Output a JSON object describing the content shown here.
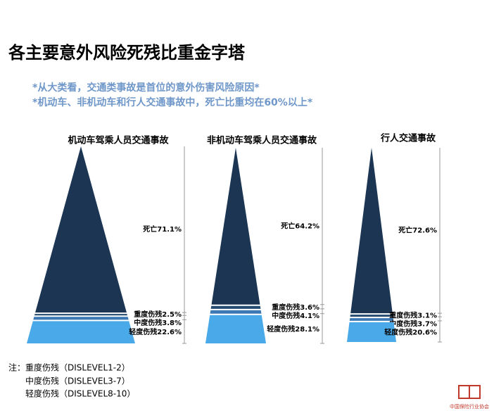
{
  "title": "各主要意外风险死残比重金字塔",
  "subtitles": [
    "*从大类看，交通类事故是首位的意外伤害风险原因*",
    "*机动车、非机动车和行人交通事故中，死亡比重均在60%以上*"
  ],
  "chart_data": [
    {
      "type": "pyramid",
      "title": "机动车驾乘人员交通事故",
      "categories": [
        "死亡",
        "重度伤残",
        "中度伤残",
        "轻度伤残"
      ],
      "values": [
        71.1,
        2.5,
        3.8,
        22.6
      ],
      "value_labels": [
        "死亡71.1%",
        "重度伤残2.5%",
        "中度伤残3.8%",
        "轻度伤残22.6%"
      ],
      "colors": [
        "#1b3553",
        "#254b70",
        "#3b78b4",
        "#4aa9e8"
      ]
    },
    {
      "type": "pyramid",
      "title": "非机动车驾乘人员交通事故",
      "categories": [
        "死亡",
        "重度伤残",
        "中度伤残",
        "轻度伤残"
      ],
      "values": [
        64.2,
        3.6,
        4.1,
        28.1
      ],
      "value_labels": [
        "死亡64.2%",
        "重度伤残3.6%",
        "中度伤残4.1%",
        "轻度伤残28.1%"
      ],
      "colors": [
        "#1b3553",
        "#254b70",
        "#3b78b4",
        "#4aa9e8"
      ]
    },
    {
      "type": "pyramid",
      "title": "行人交通事故",
      "categories": [
        "死亡",
        "重度伤残",
        "中度伤残",
        "轻度伤残"
      ],
      "values": [
        72.6,
        3.1,
        3.7,
        20.6
      ],
      "value_labels": [
        "死亡72.6%",
        "重度伤残3.1%",
        "中度伤残3.7%",
        "轻度伤残20.6%"
      ],
      "colors": [
        "#1b3553",
        "#254b70",
        "#3b78b4",
        "#4aa9e8"
      ]
    }
  ],
  "notes": [
    "注：重度伤残（DISLEVEL1-2）",
    "中度伤残（DISLEVEL3-7）",
    "轻度伤残（DISLEVEL8-10）"
  ],
  "logo": "中国保险行业协会"
}
